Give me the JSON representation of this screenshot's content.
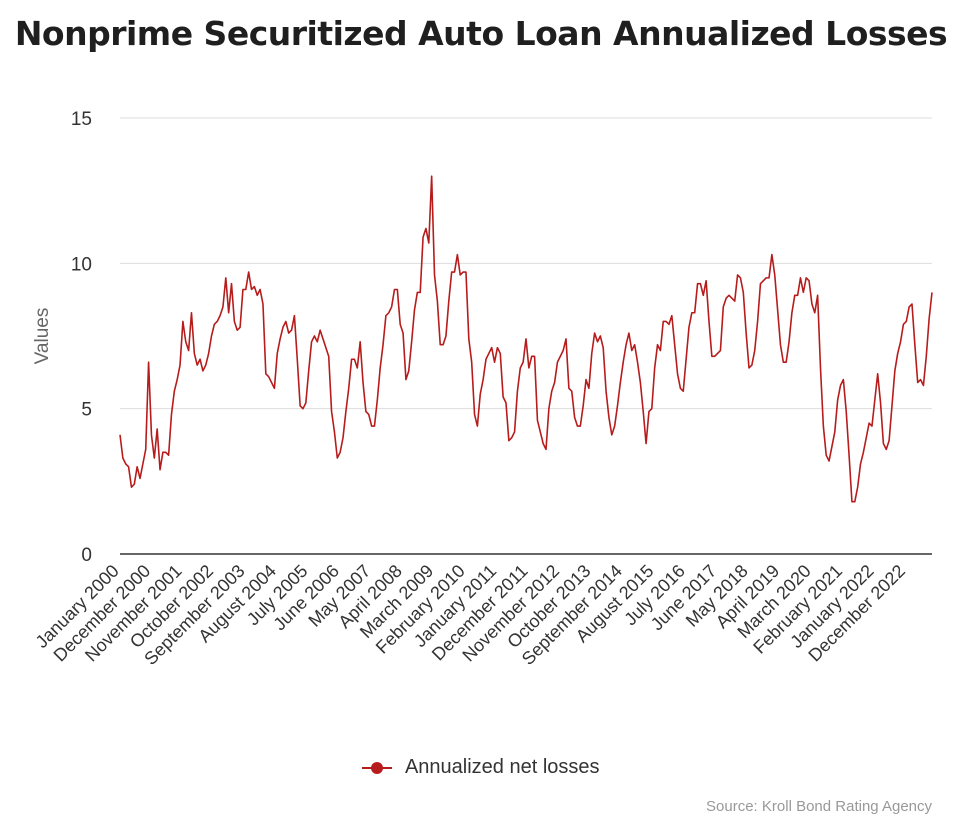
{
  "title": "Nonprime Securitized Auto Loan Annualized Losses",
  "source": "Source: Kroll Bond Rating Agency",
  "chart_data": {
    "type": "line",
    "title": "Nonprime Securitized Auto Loan Annualized Losses",
    "xlabel": "",
    "ylabel": "Values",
    "ylim": [
      0,
      15
    ],
    "yticks": [
      0,
      5,
      10,
      15
    ],
    "grid": true,
    "legend_position": "bottom",
    "line_color": "#b71c1c",
    "x_tick_labels": [
      "January 2000",
      "December 2000",
      "November 2001",
      "October 2002",
      "September 2003",
      "August 2004",
      "July 2005",
      "June 2006",
      "May 2007",
      "April 2008",
      "March 2009",
      "February 2010",
      "January 2011",
      "December 2011",
      "November 2012",
      "October 2013",
      "September 2014",
      "August 2015",
      "July 2016",
      "June 2017",
      "May 2018",
      "April 2019",
      "March 2020",
      "February 2021",
      "January 2022",
      "December 2022"
    ],
    "series": [
      {
        "name": "Annualized net losses",
        "start": "January 2000",
        "frequency": "monthly",
        "values": [
          4.1,
          3.3,
          3.1,
          3.0,
          2.3,
          2.4,
          3.0,
          2.6,
          3.1,
          3.6,
          6.6,
          4.1,
          3.3,
          4.3,
          2.9,
          3.5,
          3.5,
          3.4,
          4.8,
          5.6,
          6.0,
          6.5,
          8.0,
          7.3,
          7.0,
          8.3,
          6.9,
          6.5,
          6.7,
          6.3,
          6.5,
          6.9,
          7.5,
          7.9,
          8.0,
          8.2,
          8.5,
          9.5,
          8.3,
          9.3,
          8.0,
          7.7,
          7.8,
          9.1,
          9.1,
          9.7,
          9.1,
          9.2,
          8.9,
          9.1,
          8.6,
          6.2,
          6.1,
          5.9,
          5.7,
          6.9,
          7.4,
          7.8,
          8.0,
          7.6,
          7.7,
          8.2,
          6.7,
          5.1,
          5.0,
          5.2,
          6.3,
          7.3,
          7.5,
          7.3,
          7.7,
          7.4,
          7.1,
          6.8,
          4.9,
          4.2,
          3.3,
          3.5,
          4.0,
          4.9,
          5.7,
          6.7,
          6.7,
          6.4,
          7.3,
          5.9,
          4.9,
          4.8,
          4.4,
          4.4,
          5.3,
          6.4,
          7.2,
          8.2,
          8.3,
          8.5,
          9.1,
          9.1,
          7.9,
          7.6,
          6.0,
          6.3,
          7.3,
          8.4,
          9.0,
          9.0,
          10.9,
          11.2,
          10.7,
          13.0,
          9.6,
          8.7,
          7.2,
          7.2,
          7.5,
          8.7,
          9.7,
          9.7,
          10.3,
          9.6,
          9.7,
          9.7,
          7.4,
          6.6,
          4.8,
          4.4,
          5.5,
          6.0,
          6.7,
          6.9,
          7.1,
          6.6,
          7.1,
          6.9,
          5.4,
          5.2,
          3.9,
          4.0,
          4.2,
          5.6,
          6.4,
          6.6,
          7.4,
          6.4,
          6.8,
          6.8,
          4.6,
          4.2,
          3.8,
          3.6,
          5.0,
          5.6,
          5.9,
          6.6,
          6.8,
          7.0,
          7.4,
          5.7,
          5.6,
          4.7,
          4.4,
          4.4,
          5.1,
          6.0,
          5.7,
          6.9,
          7.6,
          7.3,
          7.5,
          7.1,
          5.6,
          4.7,
          4.1,
          4.4,
          5.1,
          5.9,
          6.6,
          7.2,
          7.6,
          7.0,
          7.2,
          6.6,
          5.9,
          4.9,
          3.8,
          4.9,
          5.0,
          6.4,
          7.2,
          7.0,
          8.0,
          8.0,
          7.9,
          8.2,
          7.2,
          6.2,
          5.7,
          5.6,
          6.7,
          7.8,
          8.3,
          8.3,
          9.3,
          9.3,
          8.9,
          9.4,
          8.0,
          6.8,
          6.8,
          6.9,
          7.0,
          8.5,
          8.8,
          8.9,
          8.8,
          8.7,
          9.6,
          9.5,
          9.0,
          7.6,
          6.4,
          6.5,
          7.0,
          8.0,
          9.3,
          9.4,
          9.5,
          9.5,
          10.3,
          9.6,
          8.4,
          7.2,
          6.6,
          6.6,
          7.3,
          8.3,
          8.9,
          8.9,
          9.5,
          9.0,
          9.5,
          9.4,
          8.6,
          8.3,
          8.9,
          6.4,
          4.4,
          3.4,
          3.2,
          3.7,
          4.2,
          5.3,
          5.8,
          6.0,
          4.9,
          3.4,
          1.8,
          1.8,
          2.3,
          3.1,
          3.5,
          4.0,
          4.5,
          4.4,
          5.3,
          6.2,
          5.2,
          3.8,
          3.6,
          3.9,
          5.1,
          6.3,
          6.9,
          7.3,
          7.9,
          8.0,
          8.5,
          8.6,
          7.2,
          5.9,
          6.0,
          5.8,
          6.8,
          8.1,
          9.0
        ]
      }
    ]
  }
}
